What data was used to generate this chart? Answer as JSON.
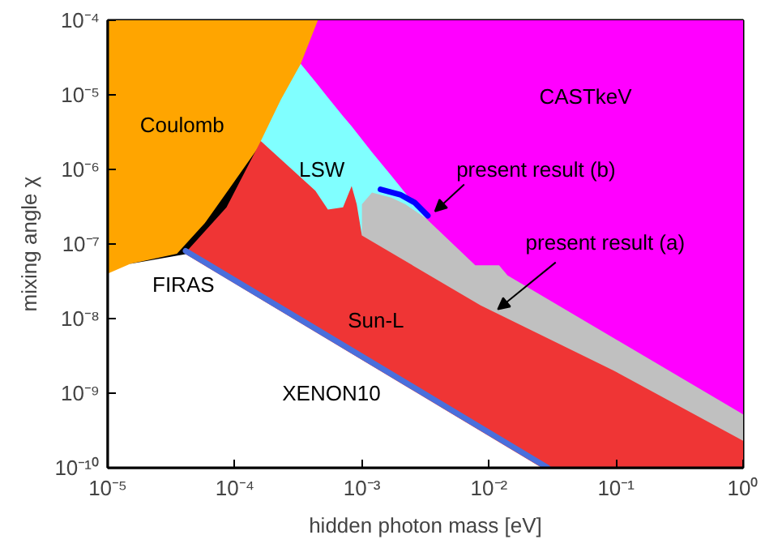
{
  "chart_data": {
    "type": "area",
    "xlabel": "hidden photon mass [eV]",
    "ylabel": "mixing angle χ",
    "log": "xy",
    "xlim": [
      1e-05,
      1
    ],
    "ylim": [
      1e-10,
      0.0001
    ],
    "xticks": [
      {
        "value": 1e-05,
        "label": "10⁻⁵"
      },
      {
        "value": 0.0001,
        "label": "10⁻⁴"
      },
      {
        "value": 0.001,
        "label": "10⁻³"
      },
      {
        "value": 0.01,
        "label": "10⁻²"
      },
      {
        "value": 0.1,
        "label": "10⁻¹"
      },
      {
        "value": 1,
        "label": "10⁰"
      }
    ],
    "yticks": [
      {
        "value": 1e-10,
        "label": "10⁻¹⁰"
      },
      {
        "value": 1e-09,
        "label": "10⁻⁹"
      },
      {
        "value": 1e-08,
        "label": "10⁻⁸"
      },
      {
        "value": 1e-07,
        "label": "10⁻⁷"
      },
      {
        "value": 1e-06,
        "label": "10⁻⁶"
      },
      {
        "value": 1e-05,
        "label": "10⁻⁵"
      },
      {
        "value": 0.0001,
        "label": "10⁻⁴"
      }
    ],
    "series": [
      {
        "name": "Coulomb",
        "color": "#ffa500",
        "x": [
          1e-05,
          0.00045
        ],
        "values": [
          0.0001,
          0.0001
        ]
      },
      {
        "name": "CASTkeV",
        "color": "#ff00ff",
        "x": [
          0.00033,
          0.00045,
          1
        ],
        "values": [
          2.6e-05,
          0.0001,
          0.0001
        ]
      },
      {
        "name": "LSW",
        "color": "#80ffff",
        "x": [
          0.00016,
          0.00023,
          0.00033,
          0.00043,
          0.00054,
          0.00071,
          0.00083,
          0.00091,
          0.0012,
          0.0017,
          0.0022,
          0.0032
        ],
        "values": [
          2.4e-06,
          8.6e-06,
          2.6e-05,
          1.5e-05,
          9.2e-06,
          5.2e-06,
          3.8e-06,
          3.1e-06,
          1.7e-06,
          8.3e-07,
          4.8e-07,
          2.2e-07
        ]
      },
      {
        "name": "present result (a)",
        "color": "#c0c0c0",
        "x": [
          0.001,
          0.0012,
          0.0017,
          0.0022,
          0.0032,
          0.0078,
          0.012,
          0.014,
          1
        ],
        "values": [
          3.4e-07,
          4.9e-07,
          4.2e-07,
          3.4e-07,
          2.2e-07,
          5.2e-08,
          5.2e-08,
          3.8e-08,
          5.2e-10
        ]
      },
      {
        "name": "FIRAS",
        "color": "#000000",
        "x": [
          1.5e-05,
          3.5e-05,
          5.8e-05,
          9.5e-05,
          0.00016
        ],
        "values": [
          5.4e-08,
          7.4e-08,
          1.9e-07,
          6.2e-07,
          2.2e-06
        ]
      },
      {
        "name": "Sun-L",
        "color": "#ef3535",
        "x": [
          4.1e-05,
          8.6e-05,
          0.00016,
          0.00043,
          0.00054,
          0.00071,
          0.00083,
          0.00091,
          0.001,
          0.0086,
          0.096,
          1
        ],
        "values": [
          7.7e-08,
          3.1e-07,
          2.4e-06,
          5.2e-07,
          2.9e-07,
          3.1e-07,
          6e-07,
          3.4e-07,
          1.3e-07,
          1.5e-08,
          2e-09,
          2.3e-10
        ]
      },
      {
        "name": "XENON10",
        "type": "line",
        "color": "#4a6fdc",
        "x": [
          4.1e-05,
          0.029
        ],
        "values": [
          8.1e-08,
          1e-10
        ]
      },
      {
        "name": "present result (b)",
        "type": "line",
        "color": "#0000ff",
        "x": [
          0.0014,
          0.002,
          0.0026,
          0.0033
        ],
        "values": [
          5.4e-07,
          4.6e-07,
          3.6e-07,
          2.4e-07
        ]
      },
      {
        "color": "#ffffff",
        "x": [
          1e-05,
          1.5e-05,
          4.1e-05,
          0.026
        ],
        "values": [
          4e-08,
          5.4e-08,
          7.3e-08,
          1e-10
        ]
      }
    ]
  }
}
